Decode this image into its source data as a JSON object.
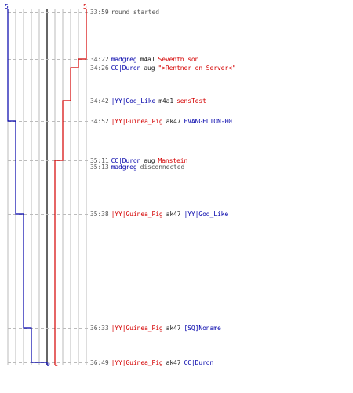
{
  "scores": {
    "blue_start": "5",
    "red_start": "5",
    "blue_end": "0",
    "red_end": "1"
  },
  "colors": {
    "blue": "#0000aa",
    "red": "#d40000",
    "gray": "#555555",
    "grid": "#bbbbbb",
    "center": "#333333"
  },
  "events": [
    {
      "time": "33:59",
      "parts": [
        {
          "text": "round started",
          "color": "gray"
        }
      ]
    },
    {
      "time": "34:22",
      "parts": [
        {
          "text": "madgreg",
          "color": "blue"
        },
        {
          "text": "m4a1",
          "color": "black"
        },
        {
          "text": "Seventh son",
          "color": "red"
        }
      ]
    },
    {
      "time": "34:26",
      "parts": [
        {
          "text": "CC|Duron",
          "color": "blue"
        },
        {
          "text": "aug",
          "color": "black"
        },
        {
          "text": "\">Rentner on Server<\"",
          "color": "red"
        }
      ]
    },
    {
      "time": "34:42",
      "parts": [
        {
          "text": "|YY|God_Like",
          "color": "blue"
        },
        {
          "text": "m4a1",
          "color": "black"
        },
        {
          "text": "sensTest",
          "color": "red"
        }
      ]
    },
    {
      "time": "34:52",
      "parts": [
        {
          "text": "|YY|Guinea_Pig",
          "color": "red"
        },
        {
          "text": "ak47",
          "color": "black"
        },
        {
          "text": "EVANGELION-00",
          "color": "blue"
        }
      ]
    },
    {
      "time": "35:11",
      "parts": [
        {
          "text": "CC|Duron",
          "color": "blue"
        },
        {
          "text": "aug",
          "color": "black"
        },
        {
          "text": "Manstein",
          "color": "red"
        }
      ]
    },
    {
      "time": "35:13",
      "parts": [
        {
          "text": "madgreg",
          "color": "blue"
        },
        {
          "text": "disconnected",
          "color": "gray"
        }
      ]
    },
    {
      "time": "35:38",
      "parts": [
        {
          "text": "|YY|Guinea_Pig",
          "color": "red"
        },
        {
          "text": "ak47",
          "color": "black"
        },
        {
          "text": "|YY|God_Like",
          "color": "blue"
        }
      ]
    },
    {
      "time": "36:33",
      "parts": [
        {
          "text": "|YY|Guinea_Pig",
          "color": "red"
        },
        {
          "text": "ak47",
          "color": "black"
        },
        {
          "text": "[SQ]Noname",
          "color": "blue"
        }
      ]
    },
    {
      "time": "36:49",
      "parts": [
        {
          "text": "|YY|Guinea_Pig",
          "color": "red"
        },
        {
          "text": "ak47",
          "color": "black"
        },
        {
          "text": "CC|Duron",
          "color": "blue"
        }
      ]
    }
  ],
  "chart_data": {
    "type": "line",
    "xlabel": "",
    "ylabel": "",
    "series": [
      {
        "color": "blue",
        "values": [
          5,
          5,
          5,
          5,
          4,
          4,
          4,
          3,
          2,
          0
        ]
      },
      {
        "color": "red",
        "values": [
          5,
          4,
          3,
          2,
          2,
          1,
          1,
          1,
          1,
          1
        ]
      }
    ]
  }
}
